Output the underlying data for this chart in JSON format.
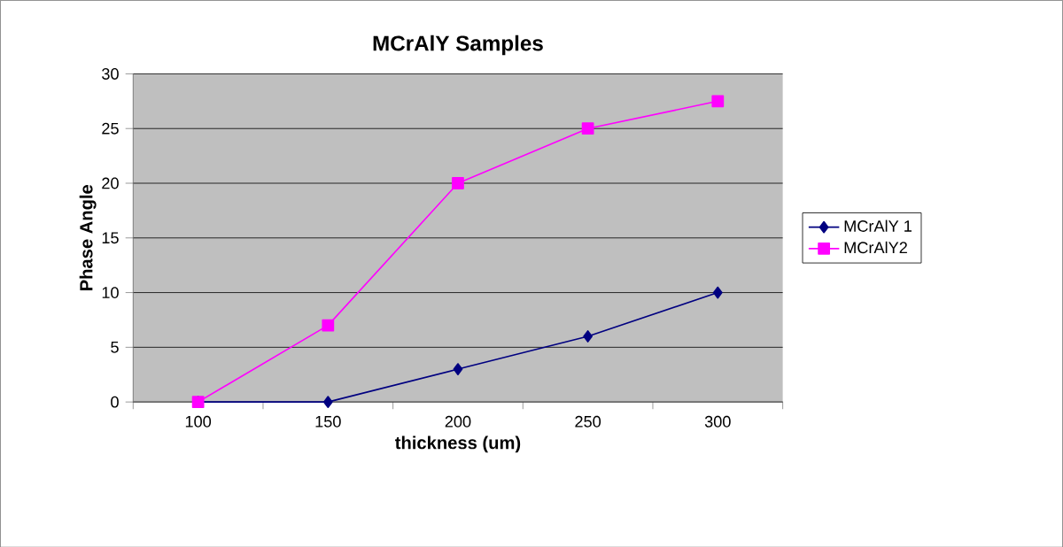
{
  "chart_data": {
    "type": "line",
    "title": "MCrAlY Samples",
    "xlabel": "thickness (um)",
    "ylabel": "Phase Angle",
    "categories": [
      "100",
      "150",
      "200",
      "250",
      "300"
    ],
    "series": [
      {
        "name": "MCrAlY 1",
        "color": "#000080",
        "marker": "diamond",
        "values": [
          0,
          0,
          3,
          6,
          10
        ]
      },
      {
        "name": "MCrAlY2",
        "color": "#ff00ff",
        "marker": "square",
        "values": [
          0,
          7,
          20,
          25,
          27.5
        ]
      }
    ],
    "ylim": [
      0,
      30
    ],
    "yticks": [
      0,
      5,
      10,
      15,
      20,
      25,
      30
    ],
    "grid": "y",
    "legend": "right",
    "line_style": "solid"
  }
}
